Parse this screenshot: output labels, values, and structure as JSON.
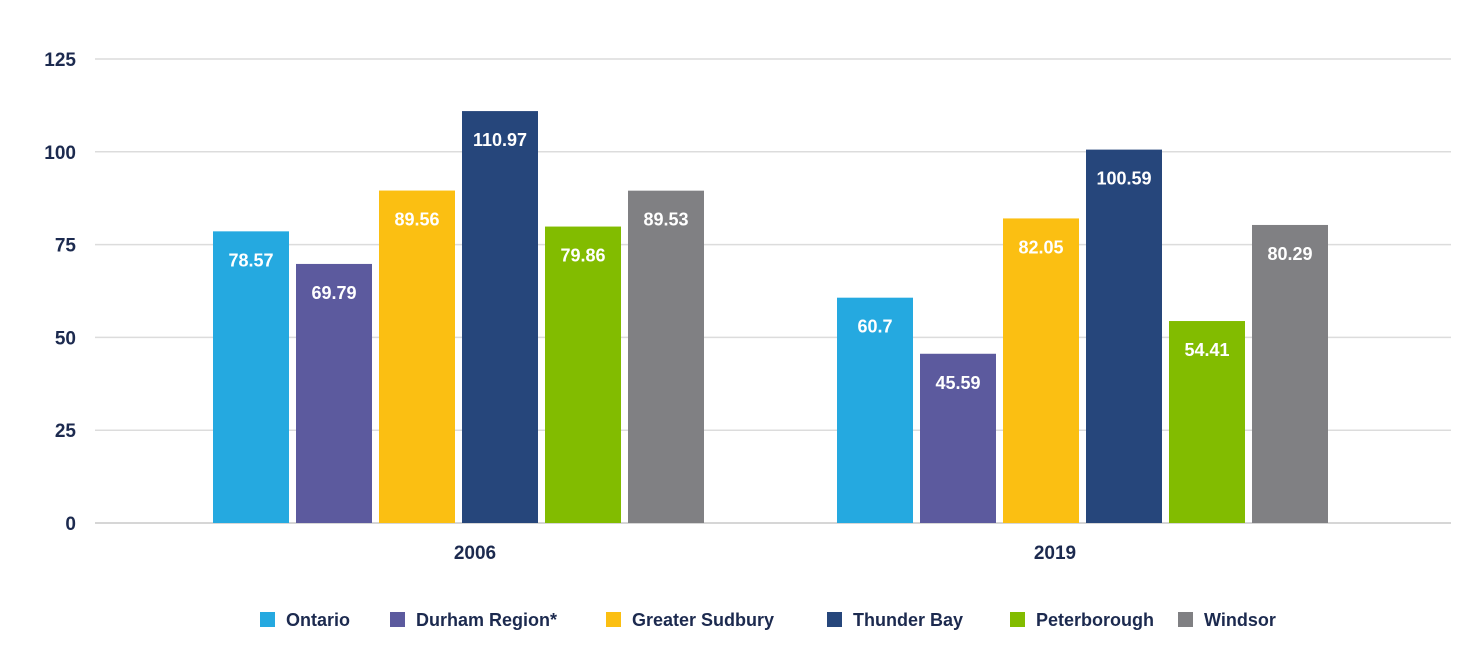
{
  "chart_data": {
    "type": "bar",
    "title": "",
    "xlabel": "",
    "ylabel": "",
    "categories": [
      "2006",
      "2019"
    ],
    "ylim": [
      0,
      125
    ],
    "yticks": [
      0,
      25,
      50,
      75,
      100,
      125
    ],
    "grid": true,
    "legend_position": "bottom",
    "series": [
      {
        "name": "Ontario",
        "color": "#25a9e0",
        "values": [
          78.57,
          60.7
        ],
        "labels": [
          "78.57",
          "60.7"
        ]
      },
      {
        "name": "Durham Region*",
        "color": "#5c5a9e",
        "values": [
          69.79,
          45.59
        ],
        "labels": [
          "69.79",
          "45.59"
        ]
      },
      {
        "name": "Greater Sudbury",
        "color": "#fbbf12",
        "values": [
          89.56,
          82.05
        ],
        "labels": [
          "89.56",
          "82.05"
        ]
      },
      {
        "name": "Thunder Bay",
        "color": "#26467b",
        "values": [
          110.97,
          100.59
        ],
        "labels": [
          "110.97",
          "100.59"
        ]
      },
      {
        "name": "Peterborough",
        "color": "#82bc00",
        "values": [
          79.86,
          54.41
        ],
        "labels": [
          "79.86",
          "54.41"
        ]
      },
      {
        "name": "Windsor",
        "color": "#808083",
        "values": [
          89.53,
          80.29
        ],
        "labels": [
          "89.53",
          "80.29"
        ]
      }
    ]
  }
}
